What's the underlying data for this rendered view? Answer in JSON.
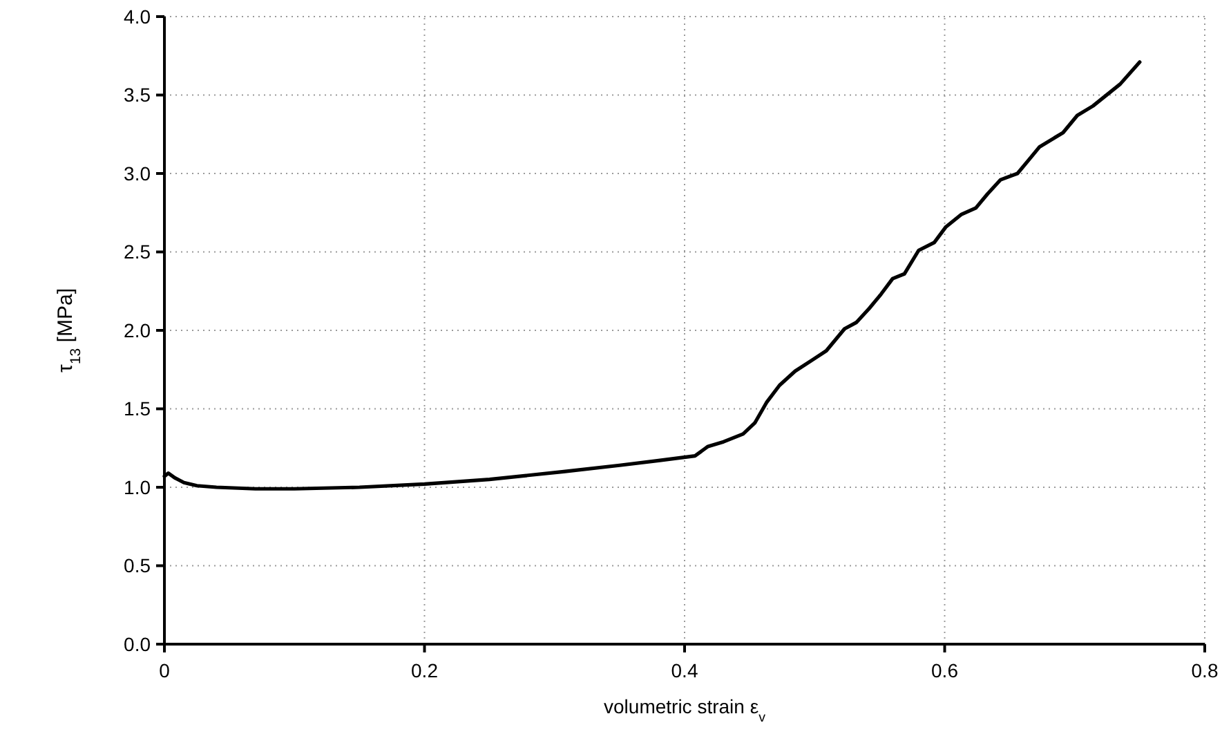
{
  "chart_data": {
    "type": "line",
    "xlabel": "volumetric strain ε$_{v}$",
    "ylabel": "τ$_{13}$ [MPa]",
    "series": [
      {
        "color": "#000000",
        "x": [
          0,
          0.003,
          0.008,
          0.015,
          0.025,
          0.04,
          0.07,
          0.1,
          0.15,
          0.2,
          0.25,
          0.307,
          0.35,
          0.38,
          0.408,
          0.418,
          0.43,
          0.445,
          0.454,
          0.463,
          0.473,
          0.485,
          0.498,
          0.509,
          0.523,
          0.532,
          0.542,
          0.551,
          0.56,
          0.569,
          0.58,
          0.592,
          0.601,
          0.613,
          0.624,
          0.633,
          0.643,
          0.656,
          0.665,
          0.673,
          0.691,
          0.702,
          0.714,
          0.735,
          0.75
        ],
        "values": [
          1.07,
          1.09,
          1.06,
          1.03,
          1.01,
          1.0,
          0.99,
          0.99,
          1.0,
          1.02,
          1.05,
          1.1,
          1.14,
          1.17,
          1.2,
          1.26,
          1.29,
          1.34,
          1.41,
          1.54,
          1.65,
          1.74,
          1.81,
          1.87,
          2.01,
          2.05,
          2.14,
          2.23,
          2.33,
          2.36,
          2.51,
          2.56,
          2.66,
          2.74,
          2.78,
          2.87,
          2.96,
          3.0,
          3.09,
          3.17,
          3.26,
          3.37,
          3.43,
          3.57,
          3.71
        ]
      }
    ],
    "xlim": [
      0,
      0.8
    ],
    "xticks": [
      {
        "value": 0,
        "label": "0"
      },
      0.2,
      0.4,
      0.6,
      0.8
    ],
    "ylim": [
      0,
      4
    ],
    "yticks": [
      {
        "value": 0,
        "label": "0.0"
      },
      0.5,
      {
        "value": 1,
        "label": "1.0"
      },
      1.5,
      {
        "value": 2,
        "label": "2.0"
      },
      2.5,
      {
        "value": 3,
        "label": "3.0"
      },
      3.5,
      {
        "value": 4,
        "label": "4.0"
      }
    ],
    "grid": true,
    "line_style": "solid",
    "marker": "none"
  }
}
